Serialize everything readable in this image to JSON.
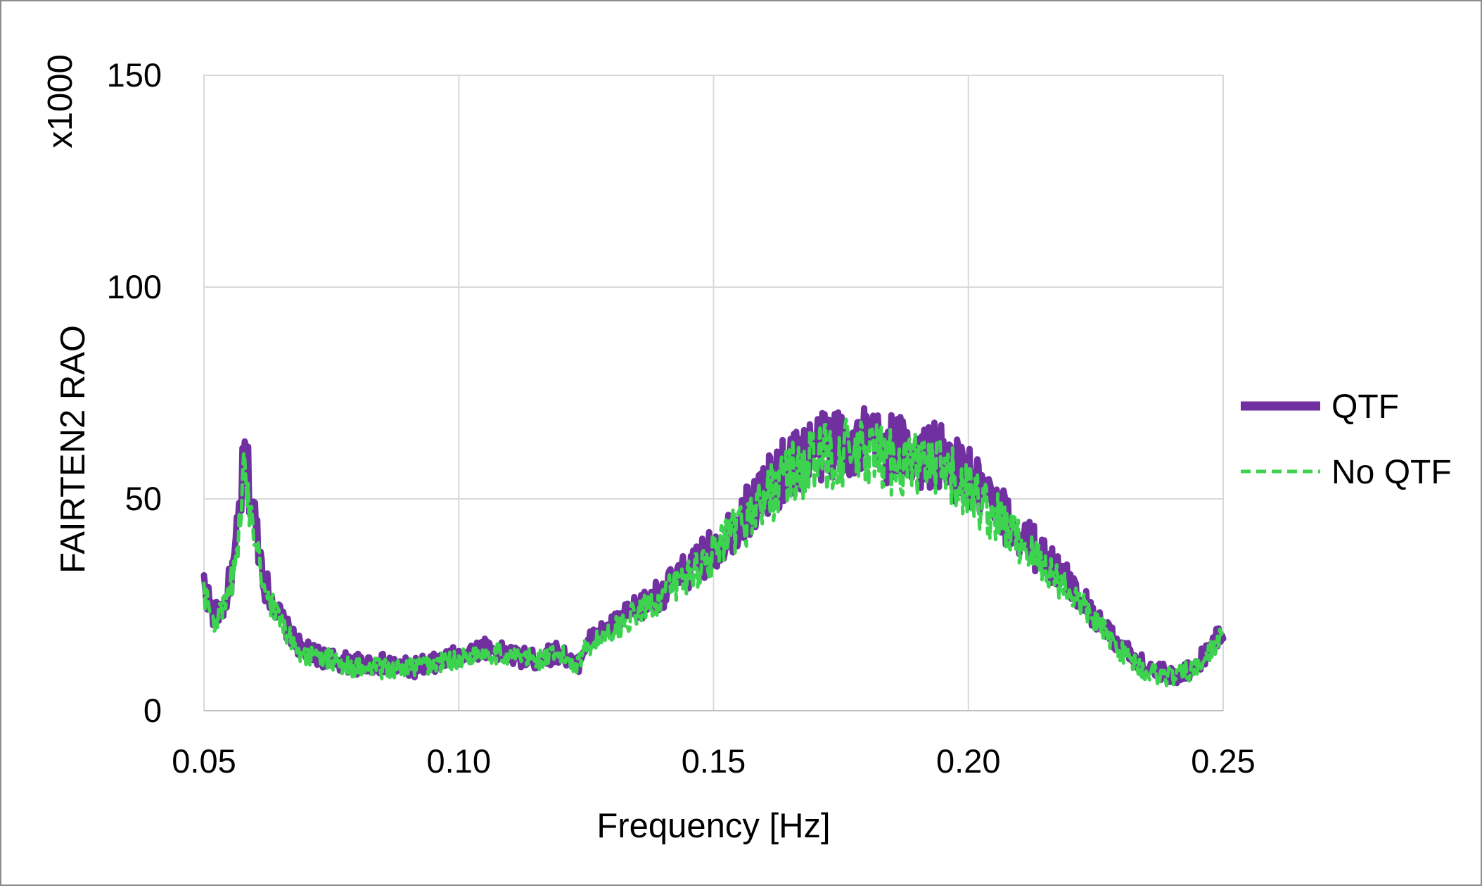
{
  "chart_data": {
    "type": "line",
    "title": "",
    "xlabel": "Frequency [Hz]",
    "ylabel": "FAIRTEN2 RAO",
    "y_multiplier_label": "x1000",
    "xlim": [
      0.05,
      0.25
    ],
    "ylim": [
      0,
      150
    ],
    "x_ticks": [
      0.05,
      0.1,
      0.15,
      0.2,
      0.25
    ],
    "x_tick_labels": [
      "0.05",
      "0.10",
      "0.15",
      "0.20",
      "0.25"
    ],
    "y_ticks": [
      0,
      50,
      100,
      150
    ],
    "y_tick_labels": [
      "0",
      "50",
      "100",
      "150"
    ],
    "grid": true,
    "legend_position": "right",
    "series": [
      {
        "name": "QTF",
        "color": "#7030a0",
        "style": "solid",
        "x": [
          0.05,
          0.052,
          0.054,
          0.056,
          0.058,
          0.06,
          0.062,
          0.065,
          0.068,
          0.07,
          0.075,
          0.08,
          0.085,
          0.09,
          0.095,
          0.1,
          0.105,
          0.11,
          0.115,
          0.12,
          0.123,
          0.125,
          0.13,
          0.135,
          0.14,
          0.145,
          0.15,
          0.155,
          0.16,
          0.165,
          0.17,
          0.175,
          0.18,
          0.185,
          0.19,
          0.195,
          0.2,
          0.205,
          0.21,
          0.215,
          0.22,
          0.225,
          0.23,
          0.235,
          0.24,
          0.245,
          0.25
        ],
        "values": [
          30,
          22,
          25,
          35,
          60,
          45,
          30,
          22,
          16,
          14,
          12,
          11,
          11,
          10,
          11,
          13,
          15,
          13,
          12,
          14,
          10,
          16,
          20,
          24,
          28,
          33,
          38,
          45,
          52,
          58,
          62,
          64,
          63,
          62,
          61,
          59,
          55,
          48,
          42,
          36,
          30,
          22,
          15,
          10,
          8,
          11,
          19
        ]
      },
      {
        "name": "No QTF",
        "color": "#3dd34f",
        "style": "dashed",
        "x": [
          0.05,
          0.052,
          0.054,
          0.056,
          0.058,
          0.06,
          0.062,
          0.065,
          0.068,
          0.07,
          0.075,
          0.08,
          0.085,
          0.09,
          0.095,
          0.1,
          0.105,
          0.11,
          0.115,
          0.12,
          0.123,
          0.125,
          0.13,
          0.135,
          0.14,
          0.145,
          0.15,
          0.155,
          0.16,
          0.165,
          0.17,
          0.175,
          0.18,
          0.185,
          0.19,
          0.195,
          0.2,
          0.205,
          0.21,
          0.215,
          0.22,
          0.225,
          0.23,
          0.235,
          0.24,
          0.245,
          0.25
        ],
        "values": [
          28,
          21,
          24,
          33,
          56,
          43,
          28,
          21,
          15,
          13,
          12,
          10,
          10,
          10,
          11,
          12,
          14,
          13,
          12,
          13,
          11,
          15,
          19,
          23,
          27,
          32,
          37,
          43,
          50,
          56,
          59,
          61,
          60,
          59,
          58,
          56,
          52,
          46,
          40,
          34,
          28,
          21,
          14,
          9,
          8,
          10,
          18
        ]
      }
    ]
  }
}
